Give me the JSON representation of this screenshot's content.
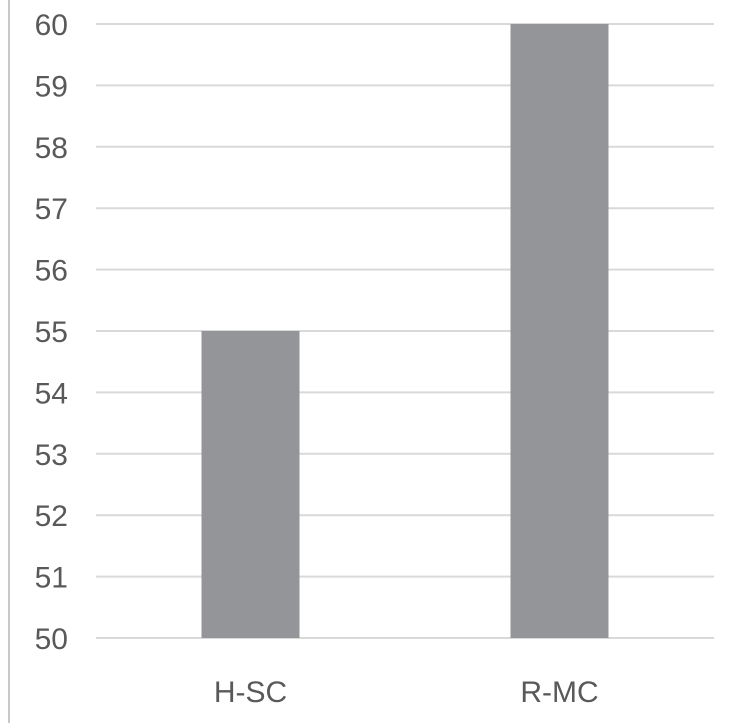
{
  "chart_data": {
    "type": "bar",
    "title": "",
    "xlabel": "",
    "ylabel": "",
    "categories": [
      "H-SC",
      "R-MC"
    ],
    "values": [
      55,
      60
    ],
    "ylim": [
      50,
      60
    ],
    "yticks": [
      50,
      51,
      52,
      53,
      54,
      55,
      56,
      57,
      58,
      59,
      60
    ],
    "grid": true,
    "legend": "none",
    "colors": {
      "bar": "#939598",
      "grid": "#d9d9d9",
      "axis_frame": "#c8c8c8",
      "text": "#595959"
    }
  }
}
